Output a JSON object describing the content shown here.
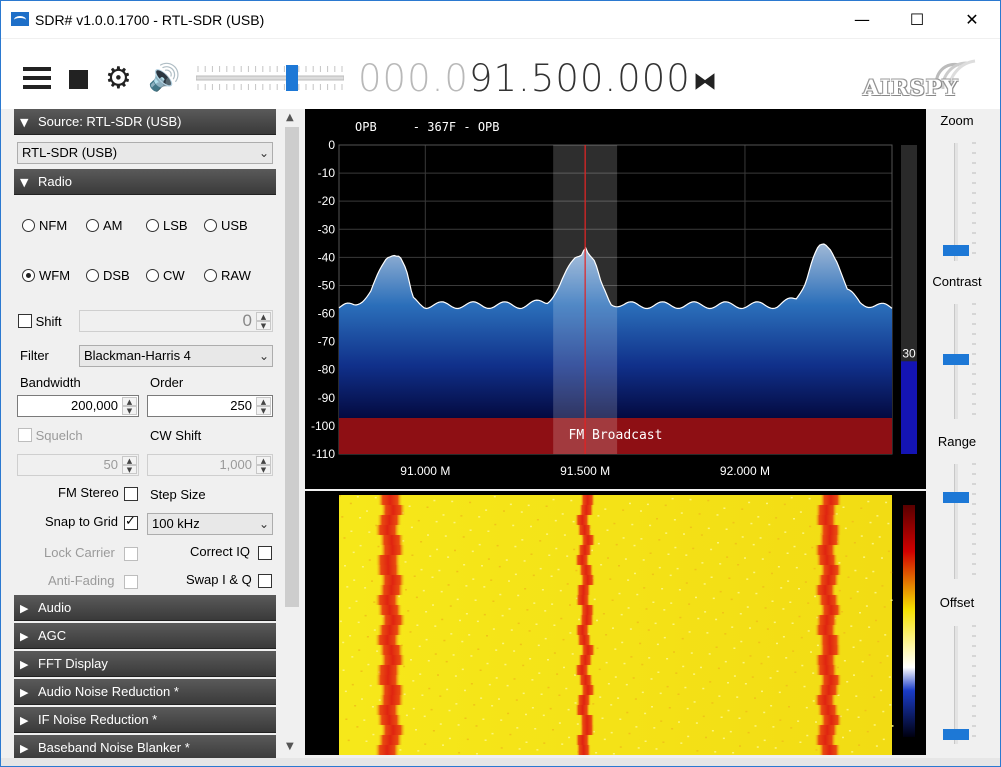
{
  "window": {
    "title": "SDR# v1.0.0.1700 - RTL-SDR (USB)",
    "minimize": "—",
    "maximize": "☐",
    "close": "✕"
  },
  "toolbar": {
    "icons": [
      "menu-icon",
      "stop-icon",
      "gear-icon",
      "speaker-icon",
      "swap-icon"
    ],
    "frequency_dim": "000.0",
    "frequency_lit": "91.500.000",
    "volume_fraction": 0.65,
    "logo": "AIRSPY"
  },
  "source": {
    "header": "Source: RTL-SDR (USB)",
    "device": "RTL-SDR (USB)"
  },
  "radio": {
    "header": "Radio",
    "modes_row1": [
      "NFM",
      "AM",
      "LSB",
      "USB"
    ],
    "modes_row2": [
      "WFM",
      "DSB",
      "CW",
      "RAW"
    ],
    "selected_mode": "WFM",
    "shift_label": "Shift",
    "shift_value": "0",
    "filter_label": "Filter",
    "filter_value": "Blackman-Harris 4",
    "bandwidth_label": "Bandwidth",
    "bandwidth_value": "200,000",
    "order_label": "Order",
    "order_value": "250",
    "squelch_label": "Squelch",
    "squelch_value": "50",
    "cwshift_label": "CW Shift",
    "cwshift_value": "1,000",
    "fm_stereo_label": "FM Stereo",
    "step_size_label": "Step Size",
    "snap_label": "Snap to Grid",
    "step_value": "100 kHz",
    "lock_carrier_label": "Lock Carrier",
    "correct_iq_label": "Correct IQ",
    "anti_fading_label": "Anti-Fading",
    "swap_iq_label": "Swap I & Q"
  },
  "sections": [
    "Audio",
    "AGC",
    "FFT Display",
    "Audio Noise Reduction *",
    "IF Noise Reduction *",
    "Baseband Noise Blanker *"
  ],
  "right_panel": {
    "zoom": "Zoom",
    "contrast": "Contrast",
    "range": "Range",
    "offset": "Offset"
  },
  "colors": {
    "accent": "#1d78d6",
    "band_plan": "#8e0f14",
    "spectrum_fill": "#1f5fa8"
  },
  "chart_data": {
    "type": "area",
    "rds_text": "OPB     - 367F - OPB",
    "band_label": "FM Broadcast",
    "y_ticks": [
      0,
      -10,
      -20,
      -30,
      -40,
      -50,
      -60,
      -70,
      -80,
      -90,
      -100,
      -110
    ],
    "ylim": [
      -110,
      0
    ],
    "x_ticks": [
      "91.000 M",
      "91.500 M",
      "92.000 M"
    ],
    "x_tick_values": [
      91.0,
      91.5,
      92.0
    ],
    "xlim": [
      90.73,
      92.46
    ],
    "center": 91.5,
    "bandwidth_mhz": 0.2,
    "level_bar_value": "30",
    "level_bar_fraction": 0.3,
    "series": [
      {
        "x": [
          90.73,
          90.78,
          90.83,
          90.86,
          90.88,
          90.9,
          90.92,
          90.94,
          90.96,
          91.0,
          91.1,
          91.2,
          91.3,
          91.38,
          91.42,
          91.45,
          91.47,
          91.49,
          91.5,
          91.51,
          91.53,
          91.55,
          91.58,
          91.62,
          91.7,
          91.8,
          91.9,
          92.0,
          92.1,
          92.16,
          92.19,
          92.21,
          92.23,
          92.25,
          92.27,
          92.29,
          92.32,
          92.36,
          92.4,
          92.46
        ],
        "y": [
          -58,
          -57,
          -52,
          -45,
          -40,
          -38,
          -39,
          -45,
          -55,
          -57,
          -57,
          -57,
          -57,
          -56,
          -50,
          -44,
          -40,
          -38,
          -35,
          -38,
          -42,
          -50,
          -56,
          -57,
          -57,
          -57,
          -57,
          -57,
          -57,
          -55,
          -48,
          -41,
          -37,
          -36,
          -37,
          -41,
          -52,
          -56,
          -57,
          -58
        ]
      }
    ],
    "waterfall_columns_mhz": [
      90.89,
      91.5,
      92.26
    ]
  }
}
